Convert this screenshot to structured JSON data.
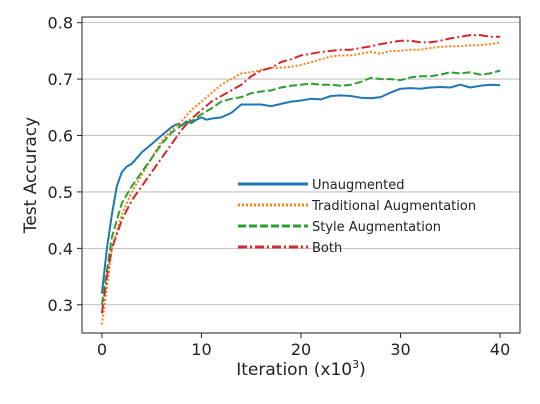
{
  "chart_data": {
    "type": "line",
    "xlabel": "Iteration (x10",
    "xlabel_exponent": "3",
    "xlabel_suffix": ")",
    "ylabel": "Test Accuracy",
    "xlim": [
      -2,
      42
    ],
    "ylim": [
      0.25,
      0.81
    ],
    "xticks": [
      0,
      10,
      20,
      30,
      40
    ],
    "yticks": [
      0.3,
      0.4,
      0.5,
      0.6,
      0.7,
      0.8
    ],
    "ytick_labels": [
      "0.3",
      "0.4",
      "0.5",
      "0.6",
      "0.7",
      "0.8"
    ],
    "grid": "horizontal",
    "legend_position": "center-right",
    "series": [
      {
        "name": "Unaugmented",
        "color": "#1f77b4",
        "dash": "solid",
        "x": [
          0,
          0.5,
          1,
          1.5,
          2,
          2.5,
          3,
          3.5,
          4,
          5,
          6,
          7,
          7.5,
          8,
          8.5,
          9,
          9.5,
          10,
          10.5,
          11,
          12,
          13,
          14,
          15,
          16,
          17,
          18,
          19,
          20,
          21,
          22,
          23,
          24,
          25,
          26,
          27,
          28,
          29,
          30,
          31,
          32,
          33,
          34,
          35,
          36,
          37,
          38,
          39,
          40
        ],
        "y": [
          0.32,
          0.4,
          0.46,
          0.51,
          0.535,
          0.545,
          0.55,
          0.56,
          0.57,
          0.585,
          0.6,
          0.615,
          0.62,
          0.618,
          0.625,
          0.622,
          0.628,
          0.632,
          0.628,
          0.63,
          0.632,
          0.64,
          0.655,
          0.655,
          0.655,
          0.652,
          0.656,
          0.66,
          0.662,
          0.665,
          0.664,
          0.67,
          0.671,
          0.67,
          0.667,
          0.666,
          0.668,
          0.676,
          0.683,
          0.684,
          0.683,
          0.685,
          0.686,
          0.685,
          0.69,
          0.685,
          0.688,
          0.69,
          0.689
        ]
      },
      {
        "name": "Traditional Augmentation",
        "color": "#ff7f0e",
        "dash": "dotted",
        "x": [
          0,
          0.5,
          1,
          2,
          3,
          4,
          5,
          6,
          7,
          8,
          9,
          10,
          11,
          12,
          13,
          14,
          15,
          16,
          17,
          18,
          19,
          20,
          21,
          22,
          23,
          24,
          25,
          26,
          27,
          28,
          29,
          30,
          31,
          32,
          33,
          34,
          35,
          36,
          37,
          38,
          39,
          40
        ],
        "y": [
          0.265,
          0.33,
          0.4,
          0.46,
          0.5,
          0.53,
          0.56,
          0.59,
          0.61,
          0.625,
          0.645,
          0.66,
          0.675,
          0.69,
          0.7,
          0.71,
          0.712,
          0.716,
          0.72,
          0.72,
          0.722,
          0.725,
          0.73,
          0.735,
          0.74,
          0.742,
          0.742,
          0.745,
          0.748,
          0.745,
          0.75,
          0.75,
          0.752,
          0.752,
          0.755,
          0.757,
          0.758,
          0.758,
          0.76,
          0.76,
          0.762,
          0.765
        ]
      },
      {
        "name": "Style Augmentation",
        "color": "#2ca02c",
        "dash": "dashed",
        "x": [
          0,
          0.5,
          1,
          2,
          3,
          4,
          5,
          6,
          7,
          8,
          9,
          10,
          11,
          12,
          13,
          14,
          15,
          16,
          17,
          18,
          19,
          20,
          21,
          22,
          23,
          24,
          25,
          26,
          27,
          28,
          29,
          30,
          31,
          32,
          33,
          34,
          35,
          36,
          37,
          38,
          39,
          40
        ],
        "y": [
          0.3,
          0.36,
          0.42,
          0.48,
          0.51,
          0.535,
          0.56,
          0.585,
          0.605,
          0.618,
          0.625,
          0.638,
          0.648,
          0.66,
          0.665,
          0.668,
          0.675,
          0.678,
          0.68,
          0.685,
          0.688,
          0.69,
          0.692,
          0.69,
          0.69,
          0.688,
          0.69,
          0.695,
          0.702,
          0.7,
          0.7,
          0.698,
          0.703,
          0.705,
          0.705,
          0.708,
          0.712,
          0.71,
          0.712,
          0.708,
          0.71,
          0.715
        ]
      },
      {
        "name": "Both",
        "color": "#d62728",
        "dash": "dashdot",
        "x": [
          0,
          0.5,
          1,
          2,
          3,
          4,
          5,
          6,
          7,
          8,
          9,
          10,
          11,
          12,
          13,
          14,
          15,
          16,
          17,
          18,
          19,
          20,
          21,
          22,
          23,
          24,
          25,
          26,
          27,
          28,
          29,
          30,
          31,
          32,
          33,
          34,
          35,
          36,
          37,
          38,
          39,
          40
        ],
        "y": [
          0.285,
          0.35,
          0.4,
          0.45,
          0.485,
          0.51,
          0.535,
          0.56,
          0.585,
          0.61,
          0.63,
          0.645,
          0.66,
          0.67,
          0.68,
          0.69,
          0.705,
          0.715,
          0.72,
          0.73,
          0.735,
          0.742,
          0.745,
          0.748,
          0.75,
          0.752,
          0.752,
          0.755,
          0.758,
          0.762,
          0.765,
          0.768,
          0.768,
          0.765,
          0.765,
          0.768,
          0.772,
          0.775,
          0.778,
          0.778,
          0.775,
          0.775
        ]
      }
    ]
  }
}
